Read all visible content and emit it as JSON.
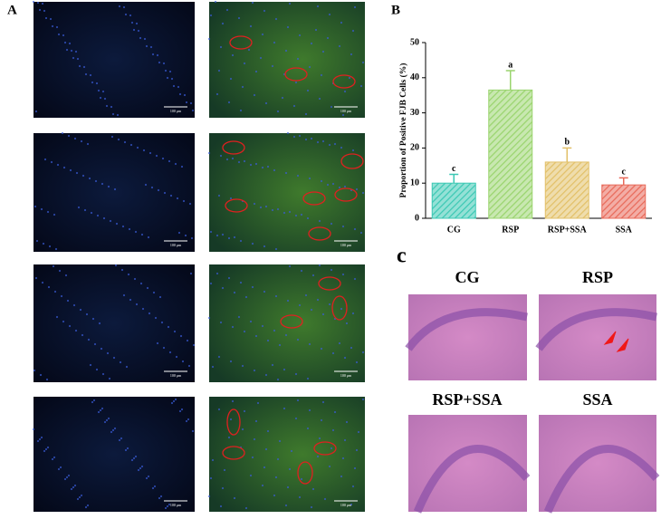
{
  "panel_labels": [
    "A",
    "B",
    "c"
  ],
  "fluorescence": {
    "scale_bar": "100 μm"
  },
  "chart_data": {
    "type": "bar",
    "y_label": "Proportion of Positive FJB Cells (%)",
    "categories": [
      "CG",
      "RSP",
      "RSP+SSA",
      "SSA"
    ],
    "values": [
      10,
      36.5,
      16,
      9.5
    ],
    "errors": [
      2.5,
      5.5,
      4,
      2
    ],
    "annotations": [
      "c",
      "a",
      "b",
      "c"
    ],
    "colors": [
      "#3cc8b4",
      "#9ad46e",
      "#e2c068",
      "#e86a5a"
    ],
    "ylim": [
      0,
      50
    ],
    "yticks": [
      0,
      10,
      20,
      30,
      40,
      50
    ]
  },
  "histology": {
    "panels": [
      "CG",
      "RSP",
      "RSP+SSA",
      "SSA"
    ]
  }
}
